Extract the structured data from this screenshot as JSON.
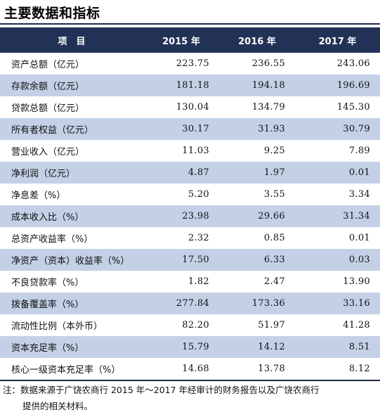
{
  "title": "主要数据和指标",
  "table": {
    "headers": [
      "项　目",
      "2015 年",
      "2016 年",
      "2017 年"
    ],
    "rows": [
      {
        "label": "资产总额（亿元）",
        "values": [
          "223.75",
          "236.55",
          "243.06"
        ]
      },
      {
        "label": "存款余额（亿元）",
        "values": [
          "181.18",
          "194.18",
          "196.69"
        ]
      },
      {
        "label": "贷款总额（亿元）",
        "values": [
          "130.04",
          "134.79",
          "145.30"
        ]
      },
      {
        "label": "所有者权益（亿元）",
        "values": [
          "30.17",
          "31.93",
          "30.79"
        ]
      },
      {
        "label": "营业收入（亿元）",
        "values": [
          "11.03",
          "9.25",
          "7.89"
        ]
      },
      {
        "label": "净利润（亿元）",
        "values": [
          "4.87",
          "1.97",
          "0.01"
        ]
      },
      {
        "label": "净息差（%）",
        "values": [
          "5.20",
          "3.55",
          "3.34"
        ]
      },
      {
        "label": "成本收入比（%）",
        "values": [
          "23.98",
          "29.66",
          "31.34"
        ]
      },
      {
        "label": "总资产收益率（%）",
        "values": [
          "2.32",
          "0.85",
          "0.01"
        ]
      },
      {
        "label": "净资产（资本）收益率（%）",
        "values": [
          "17.50",
          "6.33",
          "0.03"
        ]
      },
      {
        "label": "不良贷款率（%）",
        "values": [
          "1.82",
          "2.47",
          "13.90"
        ]
      },
      {
        "label": "拨备覆盖率（%）",
        "values": [
          "277.84",
          "173.36",
          "33.16"
        ]
      },
      {
        "label": "流动性比例（本外币）",
        "values": [
          "82.20",
          "51.97",
          "41.28"
        ]
      },
      {
        "label": "资本充足率（%）",
        "values": [
          "15.79",
          "14.12",
          "8.51"
        ]
      },
      {
        "label": "核心一级资本充足率（%）",
        "values": [
          "14.68",
          "13.78",
          "8.12"
        ]
      }
    ]
  },
  "note": {
    "line1": "注：数据来源于广饶农商行 2015 年～2017 年经审计的财务报告以及广饶农商行",
    "line2": "提供的相关材料。"
  },
  "colors": {
    "header_bg": "#223257",
    "shaded_row": "#c3d0e6"
  }
}
